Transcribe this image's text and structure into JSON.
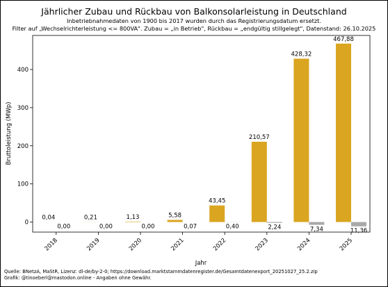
{
  "chart_data": {
    "type": "bar",
    "title": "Jährlicher Zubau und Rückbau von Balkonsolarleistung in Deutschland",
    "subtitle": [
      "Inbetriebnahmedaten von 1900 bis 2017 wurden durch das Registrierungsdatum ersetzt.",
      "Filter auf „Wechselrichterleistung <= 800VA\". Zubau = „in Betrieb\", Rückbau = „endgültig stillgelegt\", Datenstand: 26.10.2025"
    ],
    "xlabel": "Jahr",
    "ylabel": "Bruttoleistung (MWp)",
    "categories": [
      "2018",
      "2019",
      "2020",
      "2021",
      "2022",
      "2023",
      "2024",
      "2025"
    ],
    "series": [
      {
        "color": "#daa520",
        "values": [
          0.04,
          0.21,
          1.13,
          5.58,
          43.45,
          210.57,
          428.32,
          467.88
        ],
        "labels": [
          "0,04",
          "0,21",
          "1,13",
          "5,58",
          "43,45",
          "210,57",
          "428,32",
          "467,88"
        ]
      },
      {
        "color": "#a9a9a9",
        "values": [
          0.0,
          0.0,
          0.0,
          0.07,
          0.4,
          2.24,
          7.34,
          11.36
        ],
        "labels": [
          "0,00",
          "0,00",
          "0,00",
          "0,07",
          "0,40",
          "2,24",
          "7,34",
          "11,36"
        ]
      }
    ],
    "yticks": [
      0,
      100,
      200,
      300,
      400
    ],
    "ylim": [
      -22,
      491
    ],
    "grid": false,
    "footer": [
      "Quelle: BNetzA, MaStR, Lizenz: dl-de/by-2-0; https://download.marktstammdatenregister.de/Gesamtdatenexport_20251027_25.2.zip",
      "Grafik: @tinoeberl@mastodon.online - Angaben ohne Gewähr."
    ]
  }
}
